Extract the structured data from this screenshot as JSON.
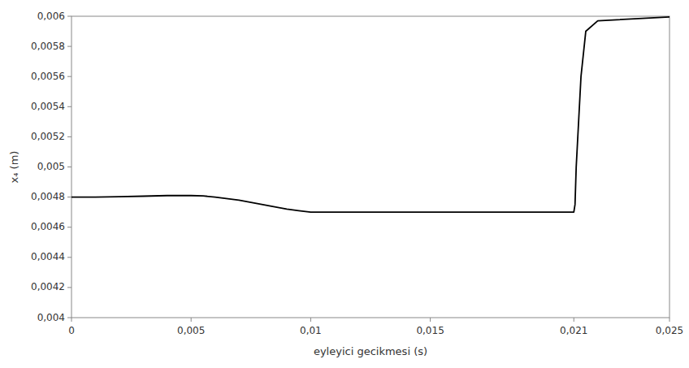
{
  "chart_data": {
    "type": "line",
    "xlabel": "eyleyici gecikmesi (s)",
    "ylabel": "x₄ (m)",
    "x": [
      0.0,
      0.001,
      0.002,
      0.003,
      0.004,
      0.005,
      0.0055,
      0.006,
      0.007,
      0.008,
      0.009,
      0.0095,
      0.01,
      0.011,
      0.012,
      0.013,
      0.014,
      0.015,
      0.016,
      0.017,
      0.018,
      0.019,
      0.02,
      0.021,
      0.02105,
      0.0211,
      0.0213,
      0.0215,
      0.022,
      0.025
    ],
    "values": [
      0.0048,
      0.0048,
      0.004803,
      0.004806,
      0.00481,
      0.00481,
      0.004808,
      0.0048,
      0.00478,
      0.00475,
      0.00472,
      0.00471,
      0.0047,
      0.0047,
      0.0047,
      0.0047,
      0.0047,
      0.0047,
      0.0047,
      0.0047,
      0.0047,
      0.0047,
      0.0047,
      0.0047,
      0.00475,
      0.005,
      0.0056,
      0.0059,
      0.00597,
      0.005995
    ],
    "color": "#000000",
    "xlim": [
      0,
      0.025
    ],
    "ylim": [
      0.004,
      0.006
    ],
    "xticks": [
      0,
      {
        "value": 0.005,
        "label": "0,005"
      },
      {
        "value": 0.01,
        "label": "0,01"
      },
      {
        "value": 0.015,
        "label": "0,015"
      },
      {
        "value": 0.021,
        "label": "0,021"
      },
      {
        "value": 0.025,
        "label": "0,025"
      }
    ],
    "yticks": [
      {
        "value": 0.004,
        "label": "0,004"
      },
      {
        "value": 0.0042,
        "label": "0,0042"
      },
      {
        "value": 0.0044,
        "label": "0,0044"
      },
      {
        "value": 0.0046,
        "label": "0,0046"
      },
      {
        "value": 0.0048,
        "label": "0,0048"
      },
      {
        "value": 0.005,
        "label": "0,005"
      },
      {
        "value": 0.0052,
        "label": "0,0052"
      },
      {
        "value": 0.0054,
        "label": "0,0054"
      },
      {
        "value": 0.0056,
        "label": "0,0056"
      },
      {
        "value": 0.0058,
        "label": "0,0058"
      },
      {
        "value": 0.006,
        "label": "0,006"
      }
    ],
    "grid": false
  }
}
